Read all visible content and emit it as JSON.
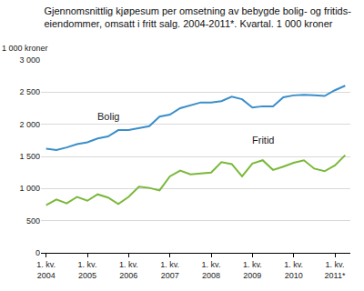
{
  "chart_data": {
    "type": "line",
    "title": "Gjennomsnittlig kjøpesum per omsetning av bebygde bolig- og fritids-\neiendommer, omsatt i fritt salg. 2004-2011*. Kvartal. 1 000 kroner",
    "y_label": "1 000 kroner",
    "categories": [
      "1. kv.\n2004",
      null,
      null,
      null,
      "1. kv.\n2005",
      null,
      null,
      null,
      "1. kv.\n2006",
      null,
      null,
      null,
      "1. kv.\n2007",
      null,
      null,
      null,
      "1. kv.\n2008",
      null,
      null,
      null,
      "1. kv.\n2009",
      null,
      null,
      null,
      "1. kv.\n2010",
      null,
      null,
      null,
      "1. kv.\n2011*",
      null
    ],
    "series": [
      {
        "name": "Bolig",
        "color": "#3a8fc9",
        "values": [
          1620,
          1600,
          1640,
          1690,
          1720,
          1780,
          1810,
          1910,
          1910,
          1940,
          1970,
          2120,
          2150,
          2250,
          2290,
          2340,
          2340,
          2360,
          2430,
          2390,
          2260,
          2280,
          2280,
          2420,
          2450,
          2460,
          2450,
          2440,
          2530,
          2600
        ]
      },
      {
        "name": "Fritid",
        "color": "#7ab83a",
        "values": [
          740,
          830,
          770,
          870,
          810,
          910,
          860,
          760,
          870,
          1030,
          1010,
          970,
          1190,
          1280,
          1220,
          1230,
          1250,
          1410,
          1380,
          1190,
          1390,
          1440,
          1290,
          1340,
          1400,
          1440,
          1310,
          1270,
          1360,
          1520
        ]
      }
    ],
    "ylim": [
      0,
      3000
    ],
    "yticks": [
      0,
      500,
      {
        "value": 1000,
        "label": "1 000"
      },
      {
        "value": 1500,
        "label": "1 500"
      },
      {
        "value": 2000,
        "label": "2 000"
      },
      {
        "value": 2500,
        "label": "2 500"
      },
      {
        "value": 3000,
        "label": "3 000"
      }
    ],
    "grid": true
  }
}
